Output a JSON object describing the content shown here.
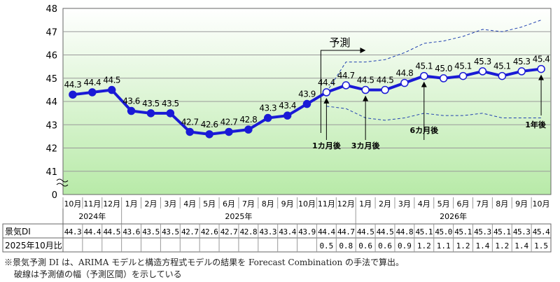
{
  "chart_data": {
    "type": "line",
    "title": "",
    "yticks": [
      "48",
      "47",
      "46",
      "45",
      "44",
      "43",
      "42",
      "41",
      "0"
    ],
    "ylim": [
      41,
      48
    ],
    "axis_break": true,
    "grid": true,
    "months": [
      "10月",
      "11月",
      "12月",
      "1月",
      "2月",
      "3月",
      "4月",
      "5月",
      "6月",
      "7月",
      "8月",
      "9月",
      "10月",
      "11月",
      "12月",
      "1月",
      "2月",
      "3月",
      "4月",
      "5月",
      "6月",
      "7月",
      "8月",
      "9月",
      "10月"
    ],
    "years": [
      {
        "label": "2024年",
        "from": 0,
        "to": 2
      },
      {
        "label": "2025年",
        "from": 3,
        "to": 14
      },
      {
        "label": "2026年",
        "from": 15,
        "to": 24
      }
    ],
    "series": [
      {
        "values": [
          44.3,
          44.4,
          44.5,
          43.6,
          43.5,
          43.5,
          42.7,
          42.6,
          42.7,
          42.8,
          43.3,
          43.4,
          43.9,
          44.4,
          44.7,
          44.5,
          44.5,
          44.8,
          45.1,
          45.0,
          45.1,
          45.3,
          45.1,
          45.3,
          45.4
        ],
        "forecast_start_index": 13,
        "color": "#1a1ad6"
      }
    ],
    "interval_upper": [
      null,
      null,
      null,
      null,
      null,
      null,
      null,
      null,
      null,
      null,
      null,
      null,
      null,
      44.4,
      45.7,
      45.7,
      45.8,
      46.1,
      46.5,
      46.6,
      46.8,
      47.1,
      47.0,
      47.2,
      47.5
    ],
    "interval_lower": [
      null,
      null,
      null,
      null,
      null,
      null,
      null,
      null,
      null,
      null,
      null,
      null,
      null,
      43.8,
      43.7,
      43.3,
      43.2,
      43.3,
      43.5,
      43.4,
      43.4,
      43.5,
      43.3,
      43.3,
      43.3
    ],
    "forecast_label": "予測",
    "annotations": [
      {
        "index": 13,
        "label": "1カ月後"
      },
      {
        "index": 15,
        "label": "3カ月後"
      },
      {
        "index": 18,
        "label": "6カ月後"
      },
      {
        "index": 24,
        "label": "1年後"
      }
    ],
    "table": {
      "row1_label": "景気DI",
      "row1": [
        "44.3",
        "44.4",
        "44.5",
        "43.6",
        "43.5",
        "43.5",
        "42.7",
        "42.6",
        "42.7",
        "42.8",
        "43.3",
        "43.4",
        "43.9",
        "44.4",
        "44.7",
        "44.5",
        "44.5",
        "44.8",
        "45.1",
        "45.0",
        "45.1",
        "45.3",
        "45.1",
        "45.3",
        "45.4"
      ],
      "row2_label": "2025年10月比",
      "row2": [
        "",
        "",
        "",
        "",
        "",
        "",
        "",
        "",
        "",
        "",
        "",
        "",
        "",
        "0.5",
        "0.8",
        "0.6",
        "0.6",
        "0.9",
        "1.2",
        "1.1",
        "1.2",
        "1.4",
        "1.2",
        "1.4",
        "1.5"
      ]
    }
  },
  "notes": [
    "※景気予測 DI は、ARIMA モデルと構造方程式モデルの結果を Forecast Combination の手法で算出。",
    "破線は予測値の幅（予測区間）を示している"
  ]
}
